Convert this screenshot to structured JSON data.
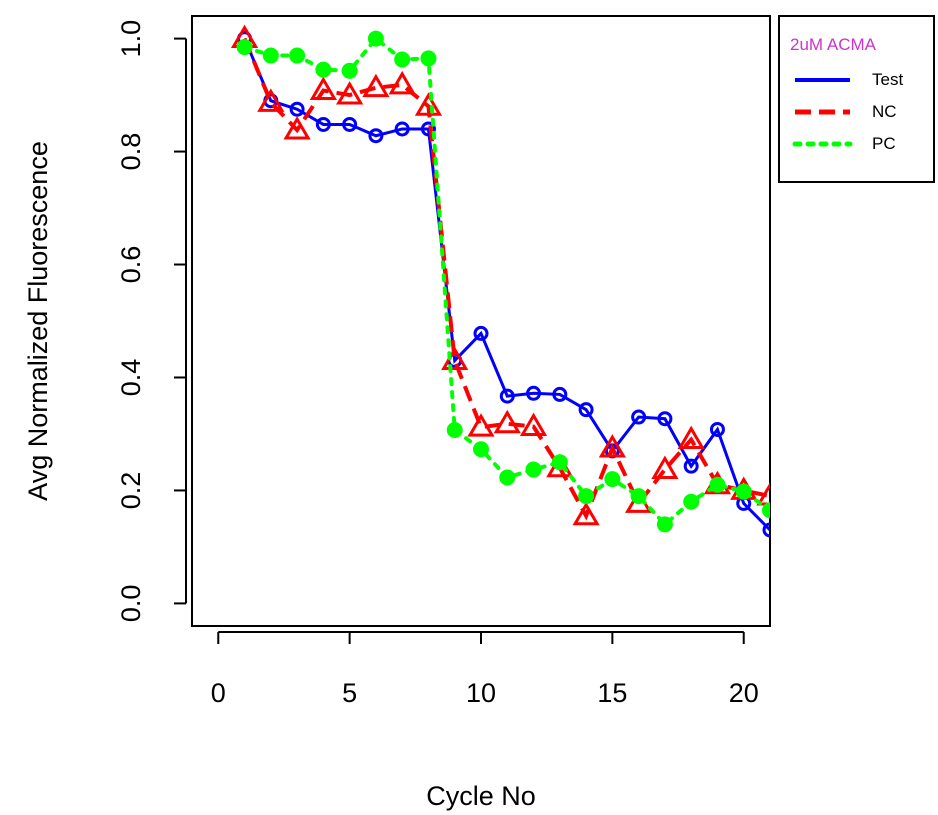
{
  "chart_data": {
    "type": "line",
    "xlabel": "Cycle No",
    "ylabel": "Avg Normalized Fluorescence",
    "xlim": [
      -1,
      21
    ],
    "ylim": [
      -0.04,
      1.04
    ],
    "xticks": [
      "0",
      "5",
      "10",
      "15",
      "20"
    ],
    "yticks": [
      "0.0",
      "0.2",
      "0.4",
      "0.6",
      "0.8",
      "1.0"
    ],
    "legend": {
      "title": "2uM ACMA",
      "title_color": "#cc33cc",
      "position": "outside-top-right"
    },
    "series": [
      {
        "name": "Test",
        "color": "#0000ff",
        "line_style": "solid",
        "marker": "circle",
        "x": [
          1,
          2,
          3,
          4,
          5,
          6,
          7,
          8,
          9,
          10,
          11,
          12,
          13,
          14,
          15,
          16,
          17,
          18,
          19,
          20,
          21
        ],
        "y": [
          1.0,
          0.89,
          0.875,
          0.848,
          0.848,
          0.828,
          0.84,
          0.84,
          0.43,
          0.478,
          0.367,
          0.372,
          0.37,
          0.343,
          0.27,
          0.33,
          0.327,
          0.243,
          0.308,
          0.177,
          0.13
        ]
      },
      {
        "name": "NC",
        "color": "#ff0000",
        "line_style": "dashed",
        "marker": "triangle",
        "x": [
          1,
          2,
          3,
          4,
          5,
          6,
          7,
          8,
          9,
          10,
          11,
          12,
          13,
          14,
          15,
          16,
          17,
          18,
          19,
          20,
          21
        ],
        "y": [
          1.0,
          0.887,
          0.838,
          0.908,
          0.9,
          0.913,
          0.918,
          0.88,
          0.43,
          0.312,
          0.318,
          0.313,
          0.24,
          0.155,
          0.275,
          0.177,
          0.237,
          0.29,
          0.21,
          0.2,
          0.19
        ]
      },
      {
        "name": "PC",
        "color": "#00ff00",
        "line_style": "dotted",
        "marker": "filled-circle",
        "x": [
          1,
          2,
          3,
          4,
          5,
          6,
          7,
          8,
          9,
          10,
          11,
          12,
          13,
          14,
          15,
          16,
          17,
          18,
          19,
          20,
          21
        ],
        "y": [
          0.985,
          0.97,
          0.97,
          0.945,
          0.943,
          1.0,
          0.963,
          0.965,
          0.307,
          0.273,
          0.223,
          0.237,
          0.25,
          0.19,
          0.22,
          0.19,
          0.14,
          0.18,
          0.21,
          0.198,
          0.165
        ]
      }
    ]
  }
}
